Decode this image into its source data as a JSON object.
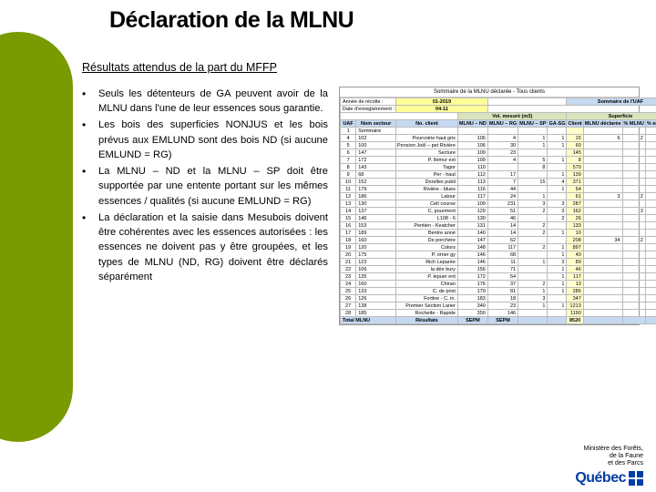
{
  "title": "Déclaration de la MLNU",
  "subheading": "Résultats attendus de la part du MFFP",
  "bullets": [
    "Seuls les détenteurs de GA peuvent avoir de la MLNU dans l'une de leur essences sous garantie.",
    "Les bois des superficies NONJUS et les bois prévus aux EMLUND sont des bois ND (si aucune EMLUND = RG)",
    "La MLNU – ND et la MLNU – SP doit être supportée par une entente portant sur les mêmes essences / qualités (si aucune EMLUND = RG)",
    "La déclaration et la saisie dans Mesubois doivent être cohérentes avec les essences autorisées : les essences ne doivent pas y être groupées, et les types de MLNU (ND, RG) doivent être déclarés séparément"
  ],
  "spreadsheet": {
    "title": "Sommaire de la MLNU déclarée - Tous clients",
    "header_left_labels": {
      "annee": "Année de récolte :",
      "annee_val": "01-2019",
      "date": "Date d'enregistrement :",
      "date_val": "04-11"
    },
    "header_right": "Sommaire de l'UAF",
    "group_vol": "Vol. mesuré (m3)",
    "group_sup": "Superficie",
    "cols": [
      "UAF",
      "Nom secteur",
      "No. client",
      "MLNU – ND",
      "MLNU – RG",
      "MLNU – SP",
      "GA-SG",
      "Client",
      "MLNU déclarée",
      "% MLNU",
      "% engagée"
    ],
    "rows": [
      [
        "1",
        "Sommaire",
        "",
        "",
        "",
        "",
        "",
        "",
        "",
        "",
        ""
      ],
      [
        "4",
        "102",
        "Pourvoirie haut gris",
        "106",
        "4",
        "1",
        "1",
        "15",
        "6",
        "2",
        "2"
      ],
      [
        "5",
        "100",
        "Pension Joël – pet Rivière",
        "106",
        "30",
        "1",
        "1",
        "60",
        "",
        "",
        ""
      ],
      [
        "6",
        "147",
        "Secture",
        "109",
        "23",
        "",
        "",
        "145",
        "",
        "",
        ""
      ],
      [
        "7",
        "172",
        "P. îlemur est",
        "109",
        "4",
        "5",
        "1",
        "8",
        "",
        "",
        ""
      ],
      [
        "8",
        "143",
        "Tagor",
        "110",
        "",
        "8",
        "",
        "570",
        "",
        "",
        ""
      ],
      [
        "9",
        "68",
        "Per - haut",
        "112",
        "17",
        "",
        "1",
        "139",
        "",
        "",
        ""
      ],
      [
        "10",
        "152",
        "Dorelles publi",
        "113",
        "7",
        "15",
        "4",
        "371",
        "",
        "",
        ""
      ],
      [
        "11",
        "179",
        "Rivière - blues",
        "116",
        "44",
        "",
        "1",
        "64",
        "",
        "",
        ""
      ],
      [
        "12",
        "186",
        "Latour",
        "117",
        "24",
        "1",
        "",
        "61",
        "3",
        "2",
        "2"
      ],
      [
        "13",
        "130",
        "Celt course",
        "109",
        "231",
        "3",
        "3",
        "287",
        "",
        "",
        ""
      ],
      [
        "14",
        "137",
        "C. pourment",
        "129",
        "51",
        "2",
        "3",
        "162",
        "",
        "3",
        "2"
      ],
      [
        "15",
        "146",
        "L108 - 6",
        "130",
        "46",
        "",
        "2",
        "26",
        "",
        "",
        ""
      ],
      [
        "16",
        "153",
        "Pentien - Keatcher",
        "131",
        "14",
        "2",
        "",
        "133",
        "",
        "",
        ""
      ],
      [
        "17",
        "189",
        "Bentre anné",
        "140",
        "14",
        "2",
        "1",
        "10",
        "",
        "",
        ""
      ],
      [
        "18",
        "160",
        "De porchère",
        "147",
        "62",
        "",
        "",
        "208",
        "34",
        "2",
        "2"
      ],
      [
        "19",
        "120",
        "Colors",
        "148",
        "117",
        "2",
        "1",
        "897",
        "",
        "",
        ""
      ],
      [
        "20",
        "175",
        "P. orner gy",
        "146",
        "68",
        "",
        "1",
        "40",
        "",
        "",
        ""
      ],
      [
        "21",
        "123",
        "Rich Leparée",
        "146",
        "11",
        "1",
        "3",
        "89",
        "",
        "",
        ""
      ],
      [
        "22",
        "106",
        "la dée bury",
        "156",
        "71",
        "",
        "1",
        "46",
        "",
        "",
        ""
      ],
      [
        "23",
        "135",
        "P. lepuer ent",
        "172",
        "54",
        "",
        "1",
        "117",
        "",
        "",
        ""
      ],
      [
        "24",
        "160",
        "Chiran",
        "176",
        "37",
        "2",
        "1",
        "13",
        "",
        "",
        ""
      ],
      [
        "25",
        "133",
        "C. de prist",
        "179",
        "81",
        "1",
        "1",
        "286",
        "",
        "",
        ""
      ],
      [
        "26",
        "126",
        "Fortine - C. in.",
        "183",
        "18",
        "3",
        "",
        "347",
        "",
        "",
        ""
      ],
      [
        "27",
        "138",
        "Premier Section Larier",
        "340",
        "23",
        "1",
        "1",
        "1213",
        "",
        "",
        ""
      ],
      [
        "28",
        "185",
        "Rochette - Rapide",
        "350",
        "146",
        "",
        "",
        "1190",
        "",
        "",
        ""
      ]
    ],
    "totals_label": "Total MLNU",
    "totals": [
      "Résultats",
      "SEPM",
      "SEPM",
      "",
      "",
      "8520",
      "",
      "",
      ""
    ],
    "colors": {
      "hdr_blue": "#c5d9f1",
      "hdr_green": "#d8e4bc",
      "hdr_yellow": "#ffff99",
      "cell_yellow": "#ffffcc"
    }
  },
  "footer": {
    "line1": "Ministère des Forêts,",
    "line2": "de la Faune",
    "line3": "et des Parcs",
    "logo_text": "Québec"
  }
}
